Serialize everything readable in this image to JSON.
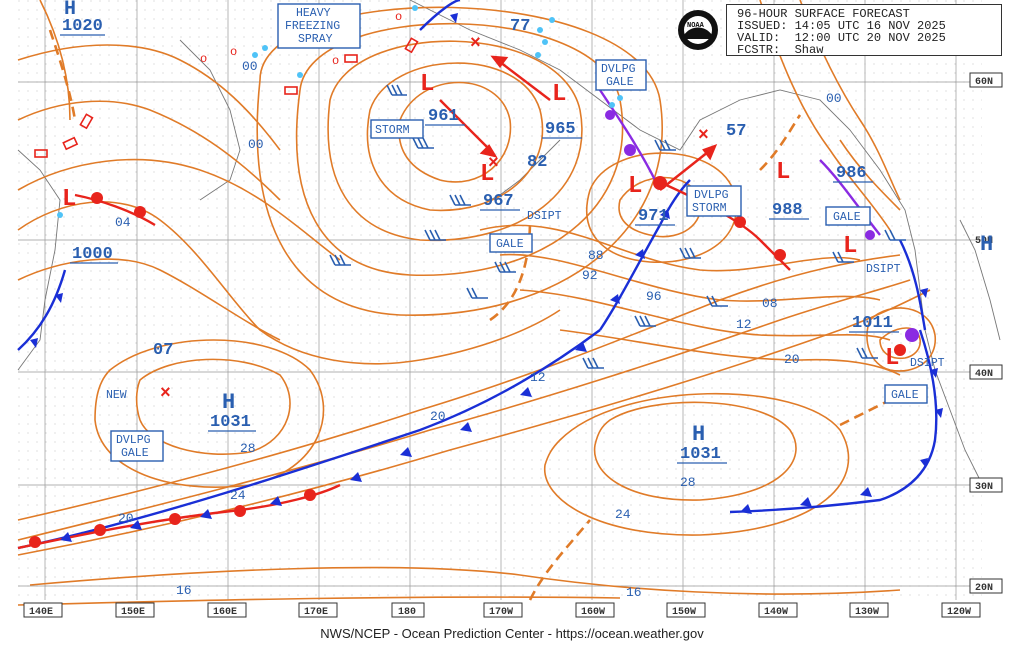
{
  "header": {
    "title": "96-HOUR SURFACE FORECAST",
    "issued": "ISSUED: 14:05 UTC 16 NOV 2025",
    "valid": "VALID:  12:00 UTC 20 NOV 2025",
    "forecaster": "FCSTR:  Shaw",
    "logo_text": "NOAA"
  },
  "credit": "NWS/NCEP - Ocean Prediction Center - https://ocean.weather.gov",
  "longitude_labels": [
    "140E",
    "150E",
    "160E",
    "170E",
    "180",
    "170W",
    "160W",
    "150W",
    "140W",
    "130W",
    "120W"
  ],
  "latitude_labels": [
    "60N",
    "50N",
    "40N",
    "30N",
    "20N"
  ],
  "pressure_centers": [
    {
      "type": "H",
      "value": "1020"
    },
    {
      "type": "L",
      "value": "1000"
    },
    {
      "type": "H",
      "value": "1031"
    },
    {
      "type": "L",
      "value": "961"
    },
    {
      "type": "L",
      "value": "967"
    },
    {
      "type": "L",
      "value": "965"
    },
    {
      "type": "L",
      "value": "971"
    },
    {
      "type": "L",
      "value": "988"
    },
    {
      "type": "L",
      "value": "986"
    },
    {
      "type": "L",
      "value": "1011"
    },
    {
      "type": "H",
      "value": "1031"
    },
    {
      "type": "H",
      "value": ""
    }
  ],
  "isobar_labels": [
    "00",
    "04",
    "07",
    "00",
    "00",
    "77",
    "82",
    "88",
    "92",
    "96",
    "57",
    "08",
    "12",
    "12",
    "20",
    "20",
    "20",
    "24",
    "24",
    "28",
    "28",
    "16",
    "16",
    "00"
  ],
  "warning_boxes": [
    "HEAVY\nFREEZING\nSPRAY",
    "STORM",
    "DVLPG\nGALE",
    "GALE",
    "DVLPG\nSTORM",
    "GALE",
    "GALE",
    "DVLPG\nGALE"
  ],
  "text_labels": [
    "DSIPT",
    "DSIPT",
    "DSIPT",
    "NEW"
  ],
  "colors": {
    "isobar": "#e07b28",
    "label": "#2a5fb0",
    "warm_front": "#e8241c",
    "cold_front": "#1a2fd6",
    "occluded": "#8a2be2",
    "ice": "#4fc3f7"
  }
}
